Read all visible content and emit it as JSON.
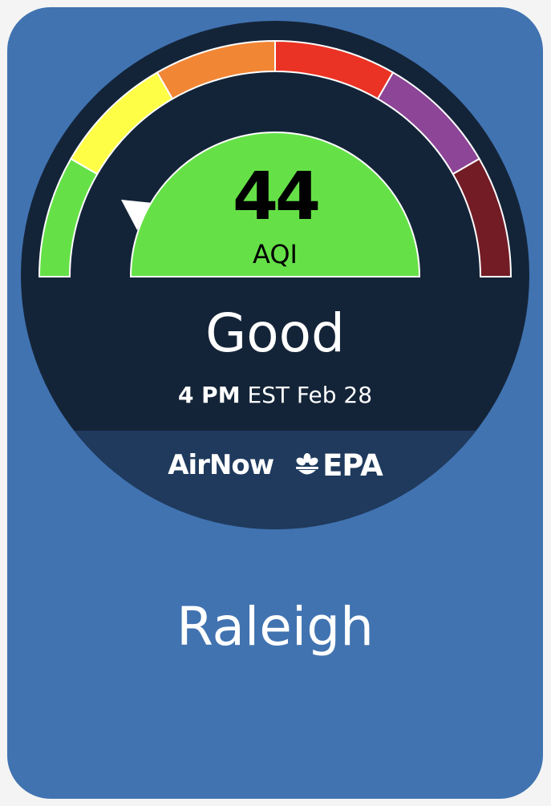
{
  "widget": {
    "aqi": {
      "value": "44",
      "label": "AQI",
      "category": "Good",
      "category_color": "#65e147"
    },
    "timestamp": {
      "hour": "4 PM",
      "rest": " EST Feb 28"
    },
    "gauge": {
      "segments": [
        {
          "name": "good",
          "color": "#65e147"
        },
        {
          "name": "moderate",
          "color": "#fefe47"
        },
        {
          "name": "unhealthy-sensitive",
          "color": "#f18635"
        },
        {
          "name": "unhealthy",
          "color": "#ea3324"
        },
        {
          "name": "very-unhealthy",
          "color": "#8c4597"
        },
        {
          "name": "hazardous",
          "color": "#731c26"
        }
      ],
      "dial_color": "#142438",
      "footer_color": "#1f3a5d"
    },
    "brand": {
      "airnow": "AirNow",
      "epa": "EPA",
      "epa_icon": "epa-flower-icon"
    },
    "location": "Raleigh",
    "card_color": "#4173b1"
  }
}
